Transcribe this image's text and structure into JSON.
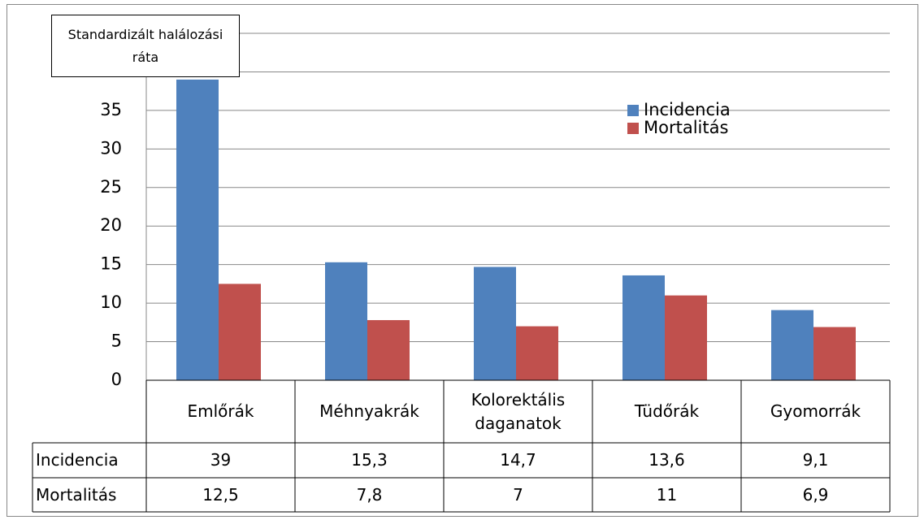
{
  "chart_data": {
    "type": "bar",
    "title": "Standardizált halálozási ráta",
    "categories": [
      "Emlőrák",
      "Méhnyakrák",
      "Kolorektális daganatok",
      "Tüdőrák",
      "Gyomorrák"
    ],
    "series": [
      {
        "name": "Incidencia",
        "color": "#4f81bd",
        "values": [
          39,
          15.3,
          14.7,
          13.6,
          9.1
        ],
        "value_labels": [
          "39",
          "15,3",
          "14,7",
          "13,6",
          "9,1"
        ]
      },
      {
        "name": "Mortalitás",
        "color": "#c0504d",
        "values": [
          12.5,
          7.8,
          7,
          11,
          6.9
        ],
        "value_labels": [
          "12,5",
          "7,8",
          "7",
          "11",
          "6,9"
        ]
      }
    ],
    "ylim": [
      0,
      45
    ],
    "yticks": [
      0,
      5,
      10,
      15,
      20,
      25,
      30,
      35,
      40,
      45
    ],
    "grid": true
  }
}
